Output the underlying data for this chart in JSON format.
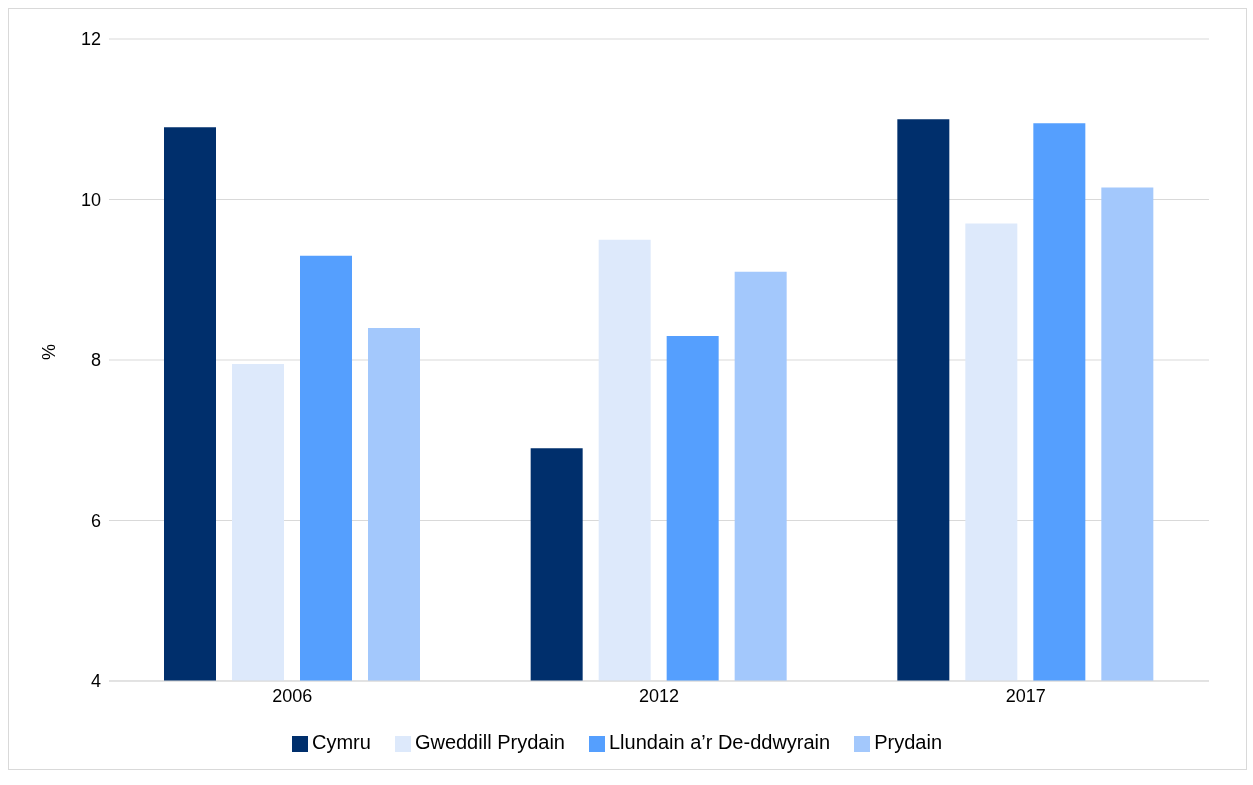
{
  "chart_data": {
    "type": "bar",
    "ylabel": "%",
    "categories": [
      "2006",
      "2012",
      "2017"
    ],
    "series": [
      {
        "name": "Cymru",
        "color": "#002f6c",
        "values": [
          10.9,
          6.9,
          11.0
        ]
      },
      {
        "name": "Gweddill Prydain",
        "color": "#dde9fb",
        "values": [
          7.95,
          9.5,
          9.7
        ]
      },
      {
        "name": "Llundain a’r De-ddwyrain",
        "color": "#559ffe",
        "values": [
          9.3,
          8.3,
          10.95
        ]
      },
      {
        "name": "Prydain",
        "color": "#a3c8fc",
        "values": [
          8.4,
          9.1,
          10.15
        ]
      }
    ],
    "ylim": [
      4,
      12
    ],
    "yticks": [
      4,
      6,
      8,
      10,
      12
    ],
    "grid": "y",
    "legend": "bottom"
  }
}
